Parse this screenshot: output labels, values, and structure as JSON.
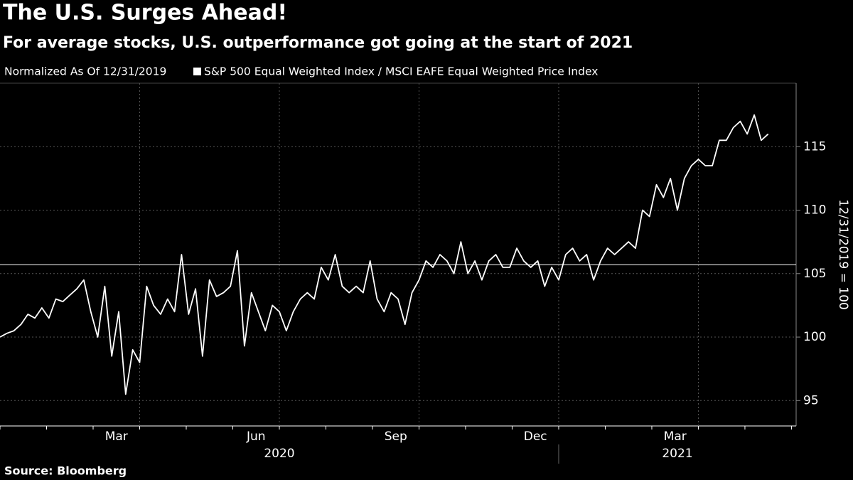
{
  "chart_data": {
    "type": "line",
    "title": "The U.S. Surges Ahead!",
    "subtitle": "For average stocks, U.S. outperformance got going at the start of 2021",
    "note": "Normalized As Of 12/31/2019",
    "y_label": "12/31/2019 = 100",
    "source": "Source: Bloomberg",
    "x": [
      0,
      0.15,
      0.3,
      0.45,
      0.6,
      0.75,
      0.9,
      1.05,
      1.2,
      1.35,
      1.5,
      1.65,
      1.8,
      1.95,
      2.1,
      2.25,
      2.4,
      2.55,
      2.7,
      2.85,
      3,
      3.15,
      3.3,
      3.45,
      3.6,
      3.75,
      3.9,
      4.05,
      4.2,
      4.35,
      4.5,
      4.65,
      4.8,
      4.95,
      5.1,
      5.25,
      5.4,
      5.55,
      5.7,
      5.85,
      6,
      6.15,
      6.3,
      6.45,
      6.6,
      6.75,
      6.9,
      7.05,
      7.2,
      7.35,
      7.5,
      7.65,
      7.8,
      7.95,
      8.1,
      8.25,
      8.4,
      8.55,
      8.7,
      8.85,
      9,
      9.15,
      9.3,
      9.45,
      9.6,
      9.75,
      9.9,
      10.05,
      10.2,
      10.35,
      10.5,
      10.65,
      10.8,
      10.95,
      11.1,
      11.25,
      11.4,
      11.55,
      11.7,
      11.85,
      12,
      12.15,
      12.3,
      12.45,
      12.6,
      12.75,
      12.9,
      13.05,
      13.2,
      13.35,
      13.5,
      13.65,
      13.8,
      13.95,
      14.1,
      14.25,
      14.4,
      14.55,
      14.7,
      14.85,
      15,
      15.15,
      15.3,
      15.45,
      15.6,
      15.75,
      15.9,
      16.05,
      16.2,
      16.35,
      16.5
    ],
    "series": [
      {
        "name": "S&P 500 Equal Weighted Index / MSCI EAFE Equal Weighted Price Index",
        "color": "#ffffff",
        "values": [
          100.0,
          100.3,
          100.5,
          101.0,
          101.8,
          101.5,
          102.3,
          101.5,
          103.0,
          102.8,
          103.3,
          103.8,
          104.5,
          102.0,
          100.0,
          104.0,
          98.5,
          102.0,
          95.5,
          99.0,
          98.0,
          104.0,
          102.5,
          101.8,
          103.0,
          102.0,
          106.5,
          101.8,
          103.8,
          98.5,
          104.5,
          103.2,
          103.5,
          104.0,
          106.8,
          99.3,
          103.5,
          102.0,
          100.5,
          102.5,
          102.0,
          100.5,
          102.0,
          103.0,
          103.5,
          103.0,
          105.5,
          104.5,
          106.5,
          104.0,
          103.5,
          104.0,
          103.5,
          106.0,
          103.0,
          102.0,
          103.5,
          103.0,
          101.0,
          103.5,
          104.5,
          106.0,
          105.5,
          106.5,
          106.0,
          105.0,
          107.5,
          105.0,
          106.0,
          104.5,
          106.0,
          106.5,
          105.5,
          105.5,
          107.0,
          106.0,
          105.5,
          106.0,
          104.0,
          105.5,
          104.5,
          106.5,
          107.0,
          106.0,
          106.5,
          104.5,
          106.0,
          107.0,
          106.5,
          107.0,
          107.5,
          107.0,
          110.0,
          109.5,
          112.0,
          111.0,
          112.5,
          110.0,
          112.5,
          113.5,
          114.0,
          113.5,
          113.5,
          115.5,
          115.5,
          116.5,
          117.0,
          116.0,
          117.5,
          115.5,
          116.0
        ]
      }
    ],
    "reference_line": 105.7,
    "xlim": [
      0,
      17.1
    ],
    "xticks": [
      {
        "value": 2.5,
        "label": "Mar"
      },
      {
        "value": 5.5,
        "label": "Jun"
      },
      {
        "value": 8.5,
        "label": "Sep"
      },
      {
        "value": 11.5,
        "label": "Dec"
      },
      {
        "value": 14.5,
        "label": "Mar"
      }
    ],
    "xminor_ticks": [
      0,
      1,
      2,
      3,
      4,
      5,
      6,
      7,
      8,
      9,
      10,
      11,
      12,
      13,
      14,
      15,
      16,
      17
    ],
    "xgrid": [
      3,
      6,
      9,
      12,
      15
    ],
    "year_labels": [
      {
        "value": 6,
        "label": "2020"
      },
      {
        "value": 14.55,
        "label": "2021"
      }
    ],
    "year_divider": 12,
    "ylim": [
      93,
      120
    ],
    "yticks": [
      95,
      100,
      105,
      110,
      115
    ],
    "grid": true
  }
}
